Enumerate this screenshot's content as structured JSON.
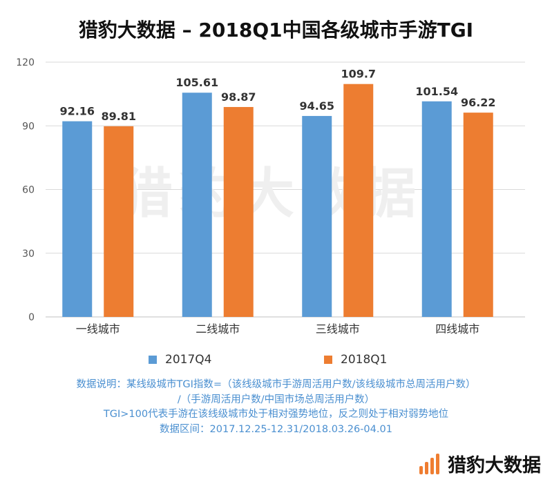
{
  "chart_data": {
    "type": "bar",
    "title": "猎豹大数据 – 2018Q1中国各级城市手游TGI",
    "categories": [
      "一线城市",
      "二线城市",
      "三线城市",
      "四线城市"
    ],
    "series": [
      {
        "name": "2017Q4",
        "values": [
          92.16,
          105.61,
          94.65,
          101.54
        ],
        "labels": [
          "92.16",
          "105.61",
          "94.65",
          "101.54"
        ],
        "color": "#5b9bd5"
      },
      {
        "name": "2018Q1",
        "values": [
          89.81,
          98.87,
          109.7,
          96.22
        ],
        "labels": [
          "89.81",
          "98.87",
          "109.7",
          "96.22"
        ],
        "color": "#ed7d31"
      }
    ],
    "ylim": [
      0,
      120
    ],
    "yticks": [
      0,
      30,
      60,
      90,
      120
    ],
    "ytick_labels": [
      "0",
      "30",
      "60",
      "90",
      "120"
    ],
    "xlabel": "",
    "ylabel": "",
    "grid": true,
    "legend_position": "bottom"
  },
  "watermark": "猎豹大数据",
  "notes": [
    "数据说明：某线级城市TGI指数=（该线级城市手游周活用户数/该线级城市总周活用户数）",
    "/（手游周活用户数/中国市场总周活用户数）",
    "TGI>100代表手游在该线级城市处于相对强势地位，反之则处于相对弱势地位",
    "数据区间：2017.12.25-12.31/2018.03.26-04.01"
  ],
  "brand": {
    "name": "猎豹大数据",
    "accent_color": "#ef7d31"
  }
}
